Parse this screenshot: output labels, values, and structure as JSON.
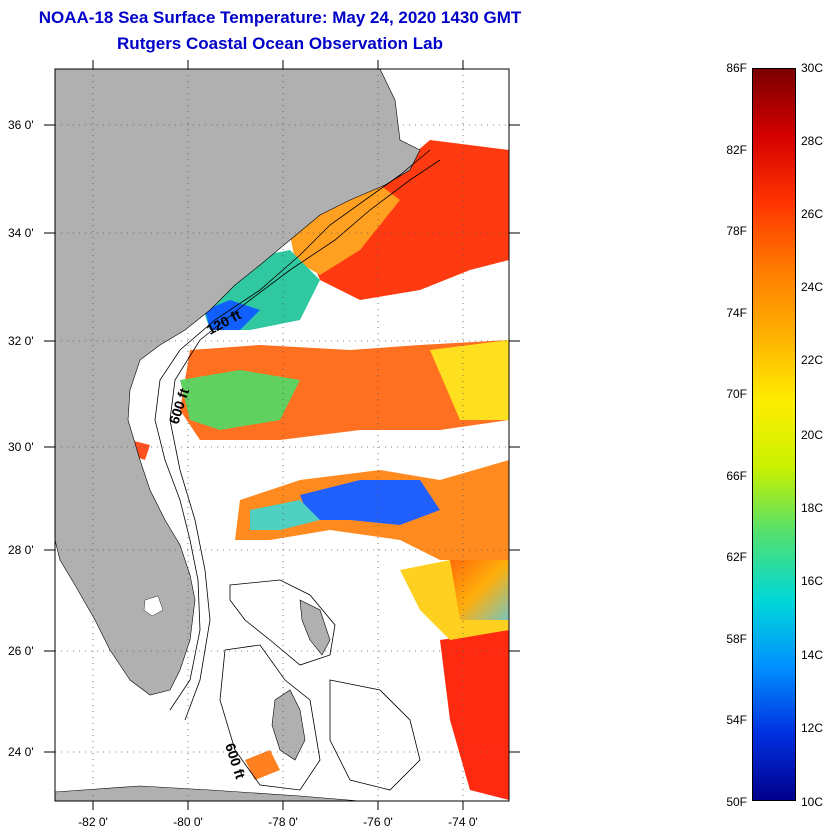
{
  "title": {
    "line1": "NOAA-18 Sea Surface Temperature:  May 24, 2020 1430 GMT",
    "line2": "Rutgers Coastal Ocean Observation Lab"
  },
  "map": {
    "lon_ticks": [
      "-82 0'",
      "-80 0'",
      "-78 0'",
      "-76 0'",
      "-74 0'"
    ],
    "lat_ticks": [
      "36 0'",
      "34 0'",
      "32 0'",
      "30 0'",
      "28 0'",
      "26 0'",
      "24 0'"
    ],
    "lon_range": [
      -83.0,
      -73.0
    ],
    "lat_range": [
      23.0,
      37.0
    ],
    "contour_labels": [
      "120 ft",
      "600 ft",
      "600 ft"
    ],
    "colors": {
      "land": "#b0b0b0",
      "cloud": "#ffffff",
      "title": "#0000c8"
    }
  },
  "colorbar": {
    "fahrenheit": [
      "86F",
      "82F",
      "78F",
      "74F",
      "70F",
      "66F",
      "62F",
      "58F",
      "54F",
      "50F"
    ],
    "celsius": [
      "30C",
      "28C",
      "26C",
      "24C",
      "22C",
      "20C",
      "18C",
      "16C",
      "14C",
      "12C",
      "10C"
    ],
    "gradient_top_to_bottom": [
      "#7a0000",
      "#d40000",
      "#ff3300",
      "#ff7a00",
      "#ffb000",
      "#ffee00",
      "#c8f000",
      "#50e070",
      "#00d8d8",
      "#0090ff",
      "#0030e0",
      "#00008c"
    ]
  }
}
